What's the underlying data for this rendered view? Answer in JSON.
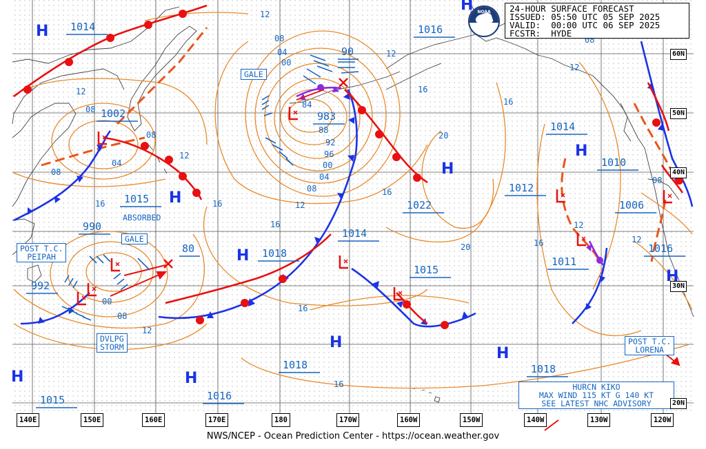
{
  "header": {
    "line1": "24-HOUR SURFACE FORECAST",
    "line2": "ISSUED: 05:50 UTC 05 SEP 2025",
    "line3": "VALID:  00:00 UTC 06 SEP 2025",
    "line4": "FCSTR:  HYDE"
  },
  "logo": {
    "text": "NOAA"
  },
  "footer": "NWS/NCEP - Ocean Prediction Center - https://ocean.weather.gov",
  "colors": {
    "front_cold": "#1a33e6",
    "front_warm": "#e81010",
    "isobar": "#e8892a",
    "label": "#1565c0",
    "occluded": "#8a2be2"
  },
  "longitude_labels": [
    "140E",
    "150E",
    "160E",
    "170E",
    "180",
    "170W",
    "160W",
    "150W",
    "140W",
    "130W",
    "120W"
  ],
  "latitude_labels": [
    "60N",
    "50N",
    "40N",
    "30N",
    "20N"
  ],
  "high_symbol": "H",
  "pressure_labels": [
    {
      "id": "1014-nw",
      "text": "1014"
    },
    {
      "id": "1002",
      "text": "1002"
    },
    {
      "id": "1015-w",
      "text": "1015"
    },
    {
      "id": "990",
      "text": "990"
    },
    {
      "id": "992",
      "text": "992"
    },
    {
      "id": "80",
      "text": "80"
    },
    {
      "id": "1018-c",
      "text": "1018"
    },
    {
      "id": "90",
      "text": "90"
    },
    {
      "id": "983",
      "text": "983"
    },
    {
      "id": "1016-n",
      "text": "1016"
    },
    {
      "id": "1022",
      "text": "1022"
    },
    {
      "id": "1014-c",
      "text": "1014"
    },
    {
      "id": "1015-c",
      "text": "1015"
    },
    {
      "id": "1012",
      "text": "1012"
    },
    {
      "id": "1014-e",
      "text": "1014"
    },
    {
      "id": "1010",
      "text": "1010"
    },
    {
      "id": "1006",
      "text": "1006"
    },
    {
      "id": "1011",
      "text": "1011"
    },
    {
      "id": "1016-e",
      "text": "1016"
    },
    {
      "id": "1018-s",
      "text": "1018"
    },
    {
      "id": "1016-s",
      "text": "1016"
    },
    {
      "id": "1015-sw",
      "text": "1015"
    },
    {
      "id": "1018-se",
      "text": "1018"
    }
  ],
  "isobar_values": [
    {
      "id": "i12a",
      "text": "12"
    },
    {
      "id": "i08a",
      "text": "08"
    },
    {
      "id": "i04a",
      "text": "04"
    },
    {
      "id": "i00a",
      "text": "00"
    },
    {
      "id": "i84",
      "text": "84"
    },
    {
      "id": "i88",
      "text": "88"
    },
    {
      "id": "i92",
      "text": "92"
    },
    {
      "id": "i96",
      "text": "96"
    },
    {
      "id": "i00b",
      "text": "00"
    },
    {
      "id": "i04b",
      "text": "04"
    },
    {
      "id": "i08b",
      "text": "08"
    },
    {
      "id": "i12b",
      "text": "12"
    },
    {
      "id": "i12c",
      "text": "12"
    },
    {
      "id": "i16a",
      "text": "16"
    },
    {
      "id": "i16b",
      "text": "16"
    },
    {
      "id": "i20a",
      "text": "20"
    },
    {
      "id": "i16c",
      "text": "16"
    },
    {
      "id": "i20b",
      "text": "20"
    },
    {
      "id": "i16d",
      "text": "16"
    },
    {
      "id": "i16e",
      "text": "16"
    },
    {
      "id": "i12d",
      "text": "12"
    },
    {
      "id": "i08c",
      "text": "08"
    },
    {
      "id": "i04c",
      "text": "04"
    },
    {
      "id": "i08d",
      "text": "08"
    },
    {
      "id": "i08e",
      "text": "08"
    },
    {
      "id": "i12e",
      "text": "12"
    },
    {
      "id": "i16f",
      "text": "16"
    },
    {
      "id": "i16g",
      "text": "16"
    },
    {
      "id": "i12f",
      "text": "12"
    },
    {
      "id": "i08f",
      "text": "08"
    },
    {
      "id": "i00c",
      "text": "00"
    },
    {
      "id": "i08g",
      "text": "08"
    },
    {
      "id": "i12g",
      "text": "12"
    },
    {
      "id": "i16h",
      "text": "16"
    },
    {
      "id": "i12h",
      "text": "12"
    },
    {
      "id": "i12i",
      "text": "12"
    },
    {
      "id": "i08h",
      "text": "08"
    },
    {
      "id": "i16i",
      "text": "16"
    }
  ],
  "boxed_labels": {
    "gale_north": "GALE",
    "gale_west": "GALE",
    "post_tc_peipah": "POST T.C.\nPEIPAH",
    "dvlpg_storm": "DVLPG\nSTORM",
    "post_tc_lorena": "POST T.C.\nLORENA"
  },
  "absorbed": "ABSORBED",
  "hurricane": {
    "line1": "HURCN KIKO",
    "line2": "MAX WIND 115 KT G 140 KT",
    "line3": "SEE LATEST NHC ADVISORY"
  }
}
